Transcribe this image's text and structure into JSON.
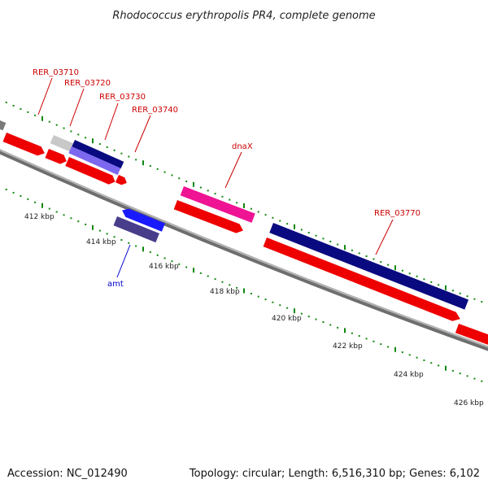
{
  "title": "Rhodococcus erythropolis PR4, complete genome",
  "footer": {
    "accession": "Accession: NC_012490",
    "summary": "Topology: circular; Length: 6,516,310 bp; Genes: 6,102"
  },
  "colors": {
    "forward_label": "#cc0000",
    "reverse_label": "#0000cc",
    "backbone": "#8a8a8a",
    "tick": "#118811",
    "red_gene": "#ee0000",
    "navy_gene": "#0a0a80",
    "pink_gene": "#ee1493",
    "lavender_gene": "#7b68ee",
    "blue_gene": "#1a1aff",
    "slate_gene": "#483d8b",
    "grey_gene": "#bfbfbf",
    "dark_grey_gene": "#7a7a7a"
  },
  "gene_labels": [
    {
      "text": "RER_03710",
      "color": "#cc0000"
    },
    {
      "text": "RER_03720",
      "color": "#cc0000"
    },
    {
      "text": "RER_03730",
      "color": "#cc0000"
    },
    {
      "text": "RER_03740",
      "color": "#cc0000"
    },
    {
      "text": "dnaX",
      "color": "#cc0000"
    },
    {
      "text": "RER_03770",
      "color": "#cc0000"
    },
    {
      "text": "amt",
      "color": "#0000cc"
    }
  ],
  "position_labels": [
    "412 kbp",
    "414 kbp",
    "416 kbp",
    "418 kbp",
    "420 kbp",
    "422 kbp",
    "424 kbp",
    "426 kbp"
  ]
}
